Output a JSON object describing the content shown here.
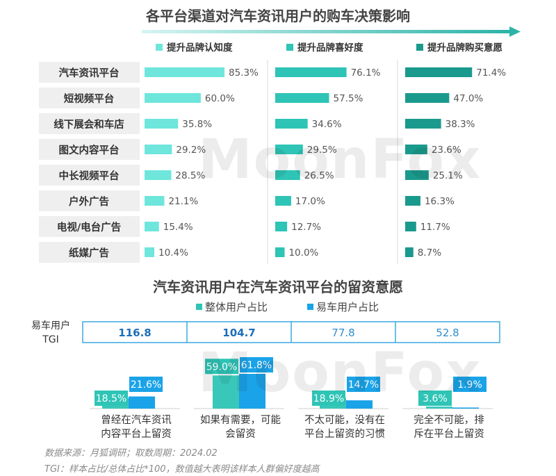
{
  "top_title": "各平台渠道对汽车资讯用户的购车决策影响",
  "bottom_title": "汽车资讯用户在汽车资讯平台的留资意愿",
  "tgi_label_line1": "易车用户",
  "tgi_label_line2": "TGI",
  "tgi_values": [
    "116.8",
    "104.7",
    "77.8",
    "52.8"
  ],
  "watermark": "MoonFox",
  "footnote_source": "数据来源：月狐调研；取数周期：2024.02",
  "footnote_tgi": "TGI：样本占比/总体占比*100，数值越大表明该样本人群偏好度越高",
  "colors": {
    "brand_light": "#6ee6dc",
    "brand_mid": "#2ec4b6",
    "brand_dark": "#1a9a8c",
    "blue": "#1aa3e8",
    "label_bg": "#efefef",
    "tgi_border": "#3aa8e0"
  },
  "chart_data": [
    {
      "type": "bar",
      "orientation": "horizontal",
      "title": "各平台渠道对汽车资讯用户的购车决策影响",
      "categories": [
        "汽车资讯平台",
        "短视频平台",
        "线下展会和车店",
        "图文内容平台",
        "中长视频平台",
        "户外广告",
        "电视/电台广告",
        "纸媒广告"
      ],
      "series": [
        {
          "name": "提升品牌认知度",
          "values": [
            85.3,
            60.0,
            35.8,
            29.2,
            28.5,
            21.1,
            15.4,
            10.4
          ],
          "labels": [
            "85.3%",
            "60.0%",
            "35.8%",
            "29.2%",
            "28.5%",
            "21.1%",
            "15.4%",
            "10.4%"
          ]
        },
        {
          "name": "提升品牌喜好度",
          "values": [
            76.1,
            57.5,
            34.6,
            29.5,
            26.5,
            17.0,
            12.7,
            10.0
          ],
          "labels": [
            "76.1%",
            "57.5%",
            "34.6%",
            "29.5%",
            "26.5%",
            "17.0%",
            "12.7%",
            "10.0%"
          ]
        },
        {
          "name": "提升品牌购买意愿",
          "values": [
            71.4,
            47.0,
            38.3,
            23.6,
            25.1,
            16.3,
            11.7,
            8.7
          ],
          "labels": [
            "71.4%",
            "47.0%",
            "38.3%",
            "23.6%",
            "25.1%",
            "16.3%",
            "11.7%",
            "8.7%"
          ]
        }
      ],
      "unit": "%",
      "legend_position": "top"
    },
    {
      "type": "bar",
      "title": "汽车资讯用户在汽车资讯平台的留资意愿",
      "categories": [
        "曾经在汽车资讯内容平台上留资",
        "如果有需要，可能会留资",
        "不太可能，没有在平台上留资的习惯",
        "完全不可能，排斥在平台上留资"
      ],
      "category_lines": [
        [
          "曾经在汽车资讯",
          "内容平台上留资"
        ],
        [
          "如果有需要，可能",
          "会留资"
        ],
        [
          "不太可能，没有在",
          "平台上留资的习惯"
        ],
        [
          "完全不可能，排",
          "斥在平台上留资"
        ]
      ],
      "series": [
        {
          "name": "整体用户占比",
          "values": [
            18.5,
            59.0,
            18.9,
            3.6
          ],
          "labels": [
            "18.5%",
            "59.0%",
            "18.9%",
            "3.6%"
          ]
        },
        {
          "name": "易车用户占比",
          "values": [
            21.6,
            61.8,
            14.7,
            1.9
          ],
          "labels": [
            "21.6%",
            "61.8%",
            "14.7%",
            "1.9%"
          ]
        }
      ],
      "tgi": [
        116.8,
        104.7,
        77.8,
        52.8
      ],
      "unit": "%",
      "legend_position": "top"
    }
  ]
}
